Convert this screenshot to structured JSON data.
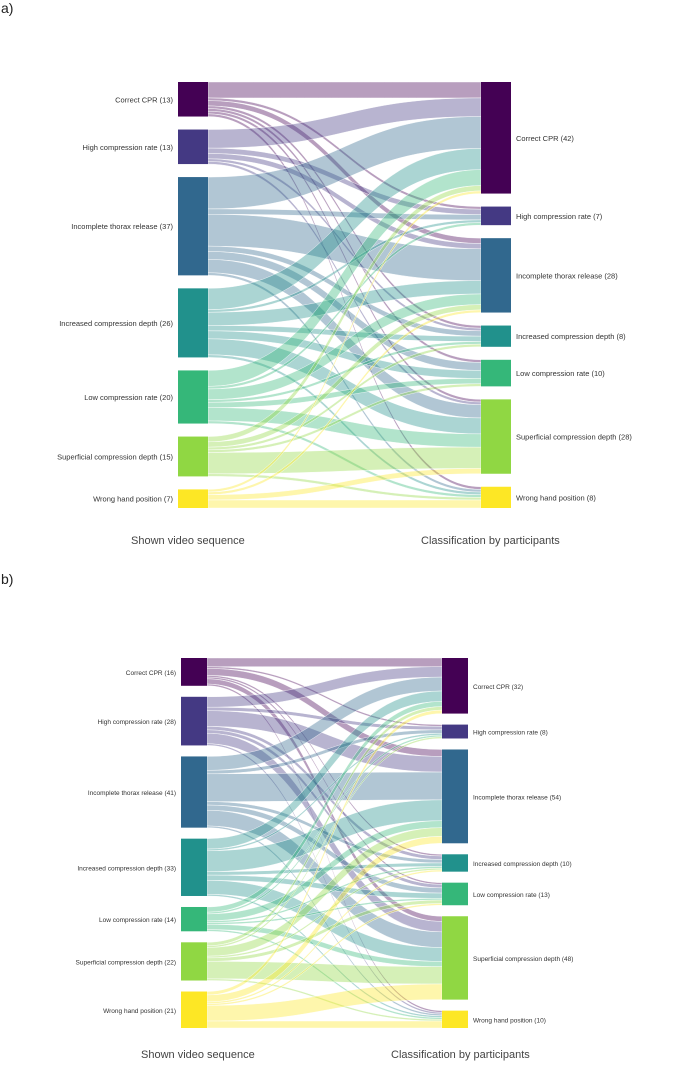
{
  "chart_data": [
    {
      "type": "sankey",
      "panel_label": "a)",
      "left_title": "Shown video sequence",
      "right_title": "Classification by participants",
      "left_nodes": [
        {
          "label": "Correct CPR (13)",
          "value": 13,
          "color": "#440154"
        },
        {
          "label": "High compression rate (13)",
          "value": 13,
          "color": "#443983"
        },
        {
          "label": "Incomplete thorax release (37)",
          "value": 37,
          "color": "#31688e"
        },
        {
          "label": "Increased compression depth (26)",
          "value": 26,
          "color": "#21918c"
        },
        {
          "label": "Low compression rate (20)",
          "value": 20,
          "color": "#35b779"
        },
        {
          "label": "Superficial compression depth (15)",
          "value": 15,
          "color": "#90d743"
        },
        {
          "label": "Wrong hand position (7)",
          "value": 7,
          "color": "#fde725"
        }
      ],
      "right_nodes": [
        {
          "label": "Correct CPR (42)",
          "value": 42,
          "color": "#440154"
        },
        {
          "label": "High compression rate (7)",
          "value": 7,
          "color": "#443983"
        },
        {
          "label": "Incomplete thorax release (28)",
          "value": 28,
          "color": "#31688e"
        },
        {
          "label": "Increased compression depth (8)",
          "value": 8,
          "color": "#21918c"
        },
        {
          "label": "Low compression rate (10)",
          "value": 10,
          "color": "#35b779"
        },
        {
          "label": "Superficial compression depth (28)",
          "value": 28,
          "color": "#90d743"
        },
        {
          "label": "Wrong hand position (8)",
          "value": 8,
          "color": "#fde725"
        }
      ],
      "flows": [
        [
          6,
          1,
          2,
          1,
          1,
          1,
          1
        ],
        [
          7,
          2,
          2,
          1,
          0,
          1,
          0
        ],
        [
          12,
          2,
          12,
          2,
          3,
          5,
          1
        ],
        [
          8,
          1,
          5,
          2,
          3,
          6,
          1
        ],
        [
          6,
          1,
          4,
          1,
          2,
          5,
          1
        ],
        [
          2,
          0,
          2,
          1,
          1,
          8,
          1
        ],
        [
          1,
          0,
          1,
          0,
          0,
          2,
          3
        ]
      ]
    },
    {
      "type": "sankey",
      "panel_label": "b)",
      "left_title": "Shown video sequence",
      "right_title": "Classification by participants",
      "left_nodes": [
        {
          "label": "Correct CPR (16)",
          "value": 16,
          "color": "#440154"
        },
        {
          "label": "High compression rate (28)",
          "value": 28,
          "color": "#443983"
        },
        {
          "label": "Incomplete thorax release (41)",
          "value": 41,
          "color": "#31688e"
        },
        {
          "label": "Increased compression depth (33)",
          "value": 33,
          "color": "#21918c"
        },
        {
          "label": "Low compression rate (14)",
          "value": 14,
          "color": "#35b779"
        },
        {
          "label": "Superficial compression depth (22)",
          "value": 22,
          "color": "#90d743"
        },
        {
          "label": "Wrong hand position (21)",
          "value": 21,
          "color": "#fde725"
        }
      ],
      "right_nodes": [
        {
          "label": "Correct CPR (32)",
          "value": 32,
          "color": "#440154"
        },
        {
          "label": "High compression rate (8)",
          "value": 8,
          "color": "#443983"
        },
        {
          "label": "Incomplete thorax release (54)",
          "value": 54,
          "color": "#31688e"
        },
        {
          "label": "Increased compression depth (10)",
          "value": 10,
          "color": "#21918c"
        },
        {
          "label": "Low compression rate (13)",
          "value": 13,
          "color": "#35b779"
        },
        {
          "label": "Superficial compression depth (48)",
          "value": 48,
          "color": "#90d743"
        },
        {
          "label": "Wrong hand position (10)",
          "value": 10,
          "color": "#fde725"
        }
      ],
      "flows": [
        [
          5,
          1,
          4,
          1,
          1,
          3,
          1
        ],
        [
          6,
          2,
          9,
          2,
          2,
          6,
          1
        ],
        [
          8,
          2,
          16,
          2,
          3,
          9,
          1
        ],
        [
          6,
          1,
          12,
          2,
          3,
          8,
          1
        ],
        [
          3,
          1,
          4,
          1,
          1,
          3,
          1
        ],
        [
          2,
          1,
          5,
          1,
          2,
          10,
          1
        ],
        [
          2,
          0,
          4,
          1,
          1,
          9,
          4
        ]
      ]
    }
  ]
}
